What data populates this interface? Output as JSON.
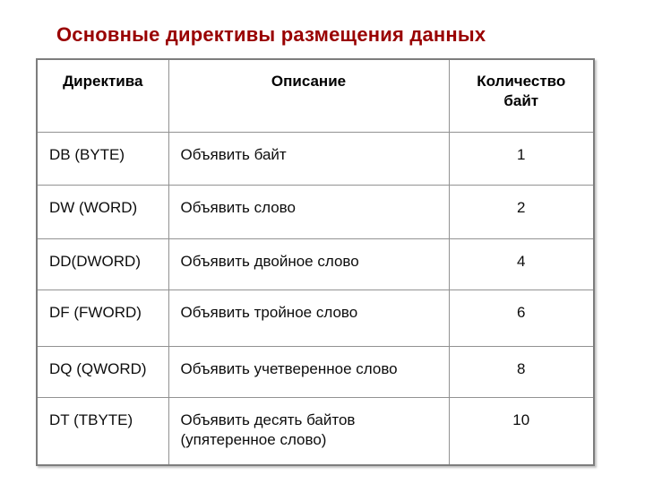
{
  "slide": {
    "title": "Основные директивы размещения данных",
    "table": {
      "headers": [
        "Директива",
        "Описание",
        "Количество байт"
      ],
      "rows": [
        {
          "directive": "DB (BYTE)",
          "description": "Объявить байт",
          "bytes": "1"
        },
        {
          "directive": "DW (WORD)",
          "description": "Объявить слово",
          "bytes": "2"
        },
        {
          "directive": "DD(DWORD)",
          "description": "Объявить двойное слово",
          "bytes": "4"
        },
        {
          "directive": "DF (FWORD)",
          "description": "Объявить тройное слово",
          "bytes": "6"
        },
        {
          "directive": "DQ (QWORD)",
          "description": "Объявить учетверенное слово",
          "bytes": "8"
        },
        {
          "directive": "DT (TBYTE)",
          "description": "Объявить десять байтов (упятеренное слово)",
          "bytes": "10"
        }
      ]
    },
    "colors": {
      "title_text": "#990000",
      "table_border": "#8f8f8f",
      "cell_text": "#000000",
      "background": "#ffffff"
    }
  }
}
